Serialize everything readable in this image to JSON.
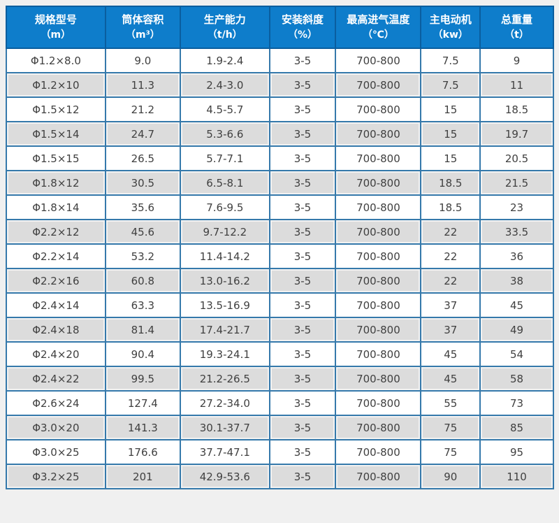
{
  "colors": {
    "header_bg": "#0e7dcb",
    "header_border": "#0a5e9f",
    "grid_border": "#3579ab",
    "row_bg": "#ffffff",
    "row_alt_bg": "#dcdcdc",
    "header_text": "#ffffff",
    "cell_text": "#404040",
    "page_bg": "#f0f0f0"
  },
  "table": {
    "columns": [
      {
        "title": "规格型号",
        "unit": "（m）"
      },
      {
        "title": "筒体容积",
        "unit": "（m³）"
      },
      {
        "title": "生产能力",
        "unit": "（t/h）"
      },
      {
        "title": "安装斜度",
        "unit": "（%）"
      },
      {
        "title": "最高进气温度",
        "unit": "（℃）"
      },
      {
        "title": "主电动机",
        "unit": "（kw）"
      },
      {
        "title": "总重量",
        "unit": "（t）"
      }
    ],
    "rows": [
      [
        "Φ1.2×8.0",
        "9.0",
        "1.9-2.4",
        "3-5",
        "700-800",
        "7.5",
        "9"
      ],
      [
        "Φ1.2×10",
        "11.3",
        "2.4-3.0",
        "3-5",
        "700-800",
        "7.5",
        "11"
      ],
      [
        "Φ1.5×12",
        "21.2",
        "4.5-5.7",
        "3-5",
        "700-800",
        "15",
        "18.5"
      ],
      [
        "Φ1.5×14",
        "24.7",
        "5.3-6.6",
        "3-5",
        "700-800",
        "15",
        "19.7"
      ],
      [
        "Φ1.5×15",
        "26.5",
        "5.7-7.1",
        "3-5",
        "700-800",
        "15",
        "20.5"
      ],
      [
        "Φ1.8×12",
        "30.5",
        "6.5-8.1",
        "3-5",
        "700-800",
        "18.5",
        "21.5"
      ],
      [
        "Φ1.8×14",
        "35.6",
        "7.6-9.5",
        "3-5",
        "700-800",
        "18.5",
        "23"
      ],
      [
        "Φ2.2×12",
        "45.6",
        "9.7-12.2",
        "3-5",
        "700-800",
        "22",
        "33.5"
      ],
      [
        "Φ2.2×14",
        "53.2",
        "11.4-14.2",
        "3-5",
        "700-800",
        "22",
        "36"
      ],
      [
        "Φ2.2×16",
        "60.8",
        "13.0-16.2",
        "3-5",
        "700-800",
        "22",
        "38"
      ],
      [
        "Φ2.4×14",
        "63.3",
        "13.5-16.9",
        "3-5",
        "700-800",
        "37",
        "45"
      ],
      [
        "Φ2.4×18",
        "81.4",
        "17.4-21.7",
        "3-5",
        "700-800",
        "37",
        "49"
      ],
      [
        "Φ2.4×20",
        "90.4",
        "19.3-24.1",
        "3-5",
        "700-800",
        "45",
        "54"
      ],
      [
        "Φ2.4×22",
        "99.5",
        "21.2-26.5",
        "3-5",
        "700-800",
        "45",
        "58"
      ],
      [
        "Φ2.6×24",
        "127.4",
        "27.2-34.0",
        "3-5",
        "700-800",
        "55",
        "73"
      ],
      [
        "Φ3.0×20",
        "141.3",
        "30.1-37.7",
        "3-5",
        "700-800",
        "75",
        "85"
      ],
      [
        "Φ3.0×25",
        "176.6",
        "37.7-47.1",
        "3-5",
        "700-800",
        "75",
        "95"
      ],
      [
        "Φ3.2×25",
        "201",
        "42.9-53.6",
        "3-5",
        "700-800",
        "90",
        "110"
      ]
    ]
  }
}
